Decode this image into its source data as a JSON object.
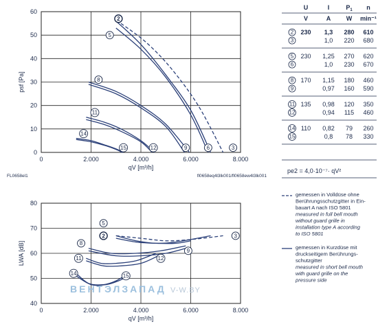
{
  "chart_data": [
    {
      "type": "line",
      "title": "",
      "xlabel": "qV [m³/h]",
      "ylabel": "psf [Pa]",
      "xlim": [
        0,
        8000
      ],
      "ylim": [
        0,
        60
      ],
      "xticks": [
        "0",
        "2.000",
        "4.000",
        "6.000",
        "8.000"
      ],
      "yticks": [
        "0",
        "10",
        "20",
        "30",
        "40",
        "50",
        "60"
      ],
      "grid": true,
      "left_note": "FL0658el1",
      "right_note": "fl0658eq4l3lk001/fl0658ew4l3lk001",
      "series": [
        {
          "name": "2",
          "style": "solid",
          "x": [
            3000,
            4000,
            5000,
            6000,
            6800
          ],
          "y": [
            56,
            46,
            33,
            18,
            0
          ]
        },
        {
          "name": "3",
          "style": "dashed",
          "x": [
            3200,
            4200,
            5200,
            6300,
            7300
          ],
          "y": [
            55,
            47,
            36,
            20,
            0
          ]
        },
        {
          "name": "5",
          "style": "solid",
          "x": [
            3000,
            4000,
            5000,
            6000,
            6700
          ],
          "y": [
            53,
            44,
            32,
            16,
            0
          ]
        },
        {
          "name": "8",
          "style": "solid",
          "x": [
            1900,
            3000,
            4000,
            5000,
            5950
          ],
          "y": [
            30,
            26,
            20,
            12,
            0
          ]
        },
        {
          "name": "11",
          "style": "solid",
          "x": [
            1800,
            2500,
            3200,
            4000,
            4550
          ],
          "y": [
            15,
            13,
            10,
            5,
            0
          ]
        },
        {
          "name": "14",
          "style": "solid",
          "x": [
            1400,
            2000,
            2600,
            3000,
            3300
          ],
          "y": [
            6,
            5,
            3,
            1.5,
            0
          ]
        },
        {
          "name": "9",
          "style": "solid",
          "x": [
            1900,
            3000,
            4000,
            5000,
            5750
          ],
          "y": [
            29,
            25,
            19,
            11,
            0
          ]
        },
        {
          "name": "12",
          "style": "solid",
          "x": [
            1800,
            2500,
            3200,
            4000,
            4450
          ],
          "y": [
            14,
            12,
            9,
            4.5,
            0
          ]
        },
        {
          "name": "15",
          "style": "solid",
          "x": [
            1400,
            2000,
            2600,
            3000,
            3250
          ],
          "y": [
            5.5,
            4.5,
            2.8,
            1.3,
            0
          ]
        }
      ],
      "labels": [
        {
          "text": "2",
          "x": 3100,
          "y": 57,
          "bold": true
        },
        {
          "text": "5",
          "x": 2750,
          "y": 50
        },
        {
          "text": "8",
          "x": 2300,
          "y": 31
        },
        {
          "text": "11",
          "x": 2150,
          "y": 17
        },
        {
          "text": "14",
          "x": 1700,
          "y": 8
        },
        {
          "text": "15",
          "x": 3300,
          "y": 2
        },
        {
          "text": "12",
          "x": 4500,
          "y": 2
        },
        {
          "text": "9",
          "x": 5800,
          "y": 2
        },
        {
          "text": "6",
          "x": 6700,
          "y": 2
        },
        {
          "text": "3",
          "x": 7700,
          "y": 2
        }
      ]
    },
    {
      "type": "line",
      "title": "",
      "xlabel": "qV [m³/h]",
      "ylabel": "LWA [dB]",
      "xlim": [
        0,
        8000
      ],
      "ylim": [
        40,
        80
      ],
      "xticks": [
        "0",
        "2.000",
        "4.000",
        "6.000",
        "8.000"
      ],
      "yticks": [
        "40",
        "50",
        "60",
        "70",
        "80"
      ],
      "grid": true,
      "series": [
        {
          "name": "3",
          "style": "dashed",
          "x": [
            3000,
            4000,
            5000,
            6000,
            7300
          ],
          "y": [
            67,
            66,
            65,
            65.5,
            67
          ]
        },
        {
          "name": "5",
          "style": "solid",
          "x": [
            3000,
            3800,
            4600,
            5400,
            6800
          ],
          "y": [
            67,
            65,
            64,
            64.5,
            67
          ]
        },
        {
          "name": "2",
          "style": "solid",
          "x": [
            3000,
            3800,
            4600,
            5400,
            6000
          ],
          "y": [
            66,
            64.5,
            64,
            64,
            65
          ]
        },
        {
          "name": "8",
          "style": "solid",
          "x": [
            1900,
            2800,
            3800,
            4800,
            5800
          ],
          "y": [
            62,
            60,
            60,
            61,
            63
          ]
        },
        {
          "name": "11",
          "style": "solid",
          "x": [
            1800,
            2400,
            3000,
            3800,
            4600
          ],
          "y": [
            58,
            56,
            56,
            57,
            60
          ]
        },
        {
          "name": "14",
          "style": "solid",
          "x": [
            1400,
            1900,
            2500,
            3000,
            3500
          ],
          "y": [
            52,
            48,
            47.5,
            49,
            52
          ]
        },
        {
          "name": "9",
          "style": "solid",
          "x": [
            1900,
            3000,
            4000,
            5000,
            5800
          ],
          "y": [
            61,
            59,
            59,
            60,
            62
          ]
        },
        {
          "name": "12",
          "style": "solid",
          "x": [
            1800,
            2500,
            3200,
            4000,
            4700
          ],
          "y": [
            57,
            55,
            55,
            56,
            59
          ]
        },
        {
          "name": "15",
          "style": "solid",
          "x": [
            1400,
            2000,
            2600,
            3100,
            3500
          ],
          "y": [
            51,
            47.5,
            47.5,
            49,
            51
          ]
        }
      ],
      "labels": [
        {
          "text": "5",
          "x": 2500,
          "y": 72
        },
        {
          "text": "2",
          "x": 2500,
          "y": 67,
          "bold": true
        },
        {
          "text": "8",
          "x": 1600,
          "y": 64
        },
        {
          "text": "11",
          "x": 1500,
          "y": 58
        },
        {
          "text": "14",
          "x": 1300,
          "y": 52
        },
        {
          "text": "15",
          "x": 3400,
          "y": 51
        },
        {
          "text": "12",
          "x": 4800,
          "y": 58
        },
        {
          "text": "9",
          "x": 5900,
          "y": 61
        },
        {
          "text": "3",
          "x": 7800,
          "y": 67
        }
      ]
    }
  ],
  "table": {
    "header_top": [
      "U",
      "I",
      "P1",
      "n"
    ],
    "header_units": [
      "V",
      "A",
      "W",
      "min⁻¹"
    ],
    "groups": [
      {
        "rows": [
          {
            "id": "2",
            "U": "230",
            "I": "1,3",
            "P": "280",
            "n": "610",
            "bold": true
          },
          {
            "id": "3",
            "U": "",
            "I": "1,0",
            "P": "220",
            "n": "680",
            "bold": false
          }
        ]
      },
      {
        "rows": [
          {
            "id": "5",
            "U": "230",
            "I": "1,25",
            "P": "270",
            "n": "620",
            "bold": false
          },
          {
            "id": "6",
            "U": "",
            "I": "1,0",
            "P": "230",
            "n": "670",
            "bold": false
          }
        ]
      },
      {
        "rows": [
          {
            "id": "8",
            "U": "170",
            "I": "1,15",
            "P": "180",
            "n": "460",
            "bold": false
          },
          {
            "id": "9",
            "U": "",
            "I": "0,97",
            "P": "160",
            "n": "590",
            "bold": false
          }
        ]
      },
      {
        "rows": [
          {
            "id": "11",
            "U": "135",
            "I": "0,98",
            "P": "120",
            "n": "350",
            "bold": false
          },
          {
            "id": "12",
            "U": "",
            "I": "0,94",
            "P": "115",
            "n": "460",
            "bold": false
          }
        ]
      },
      {
        "rows": [
          {
            "id": "14",
            "U": "110",
            "I": "0,82",
            "P": "79",
            "n": "260",
            "bold": false
          },
          {
            "id": "15",
            "U": "",
            "I": "0,8",
            "P": "78",
            "n": "330",
            "bold": false
          }
        ]
      }
    ],
    "formula": "pe2 = 4,0·10⁻⁷· qV²"
  },
  "legend": {
    "dashed": [
      "gemessen in Volldüse ohne",
      "Berührungsschutzgitter in Ein-",
      "bauart A nach ISO 5801",
      "measured in full bell mouth",
      "without guard grille in",
      "installation type A according",
      "to ISO 5801"
    ],
    "solid": [
      "gemessen in Kurzdüse mit",
      "druckseitigem Berührungs-",
      "schutzgitter",
      "measured in short bell mouth",
      "with guard grille on the",
      "pressure side"
    ]
  },
  "watermark": {
    "main": "ВЕНТЭЛЗАПАД",
    "site": "V-W.BY"
  },
  "colors": {
    "curve": "#2a3f78",
    "grid": "#222222",
    "text": "#1c2a4a"
  }
}
